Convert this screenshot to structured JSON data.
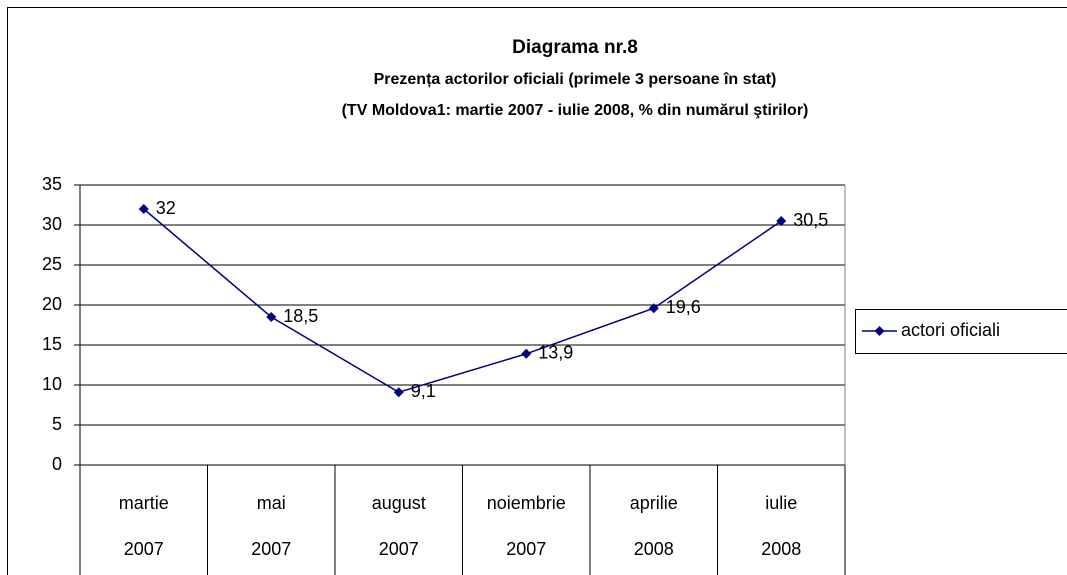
{
  "chart_data": {
    "type": "line",
    "title": "Diagrama nr.8",
    "subtitle": [
      "Prezența actorilor oficiali (primele 3 persoane în stat)",
      "(TV Moldova1: martie 2007 - iulie 2008, % din numărul ştirilor)"
    ],
    "categories": [
      [
        "martie",
        "2007"
      ],
      [
        "mai",
        "2007"
      ],
      [
        "august",
        "2007"
      ],
      [
        "noiembrie",
        "2007"
      ],
      [
        "aprilie",
        "2008"
      ],
      [
        "iulie",
        "2008"
      ]
    ],
    "series": [
      {
        "name": "actori oficiali",
        "color": "#000080",
        "values": [
          32,
          18.5,
          9.1,
          13.9,
          19.6,
          30.5
        ],
        "value_labels": [
          "32",
          "18,5",
          "9,1",
          "13,9",
          "19,6",
          "30,5"
        ]
      }
    ],
    "ylim": [
      0,
      35
    ],
    "yticks": [
      0,
      5,
      10,
      15,
      20,
      25,
      30,
      35
    ],
    "grid": true,
    "legend": "right"
  }
}
